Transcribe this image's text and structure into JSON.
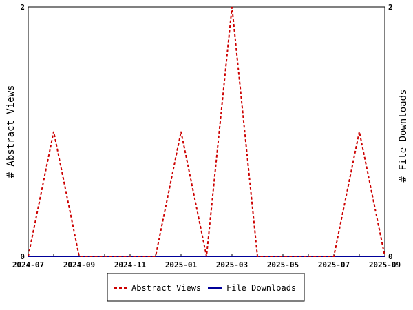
{
  "chart_data": {
    "type": "line",
    "x_labels": [
      "2024-07",
      "2024-09",
      "2024-11",
      "2025-01",
      "2025-03",
      "2025-05",
      "2025-07",
      "2025-09"
    ],
    "x": [
      "2024-07",
      "2024-08",
      "2024-09",
      "2024-10",
      "2024-11",
      "2024-12",
      "2025-01",
      "2025-02",
      "2025-03",
      "2025-04",
      "2025-05",
      "2025-06",
      "2025-07",
      "2025-08",
      "2025-09"
    ],
    "series": [
      {
        "name": "Abstract Views",
        "axis": "left",
        "color": "#cc0000",
        "style": "dashed",
        "values": [
          0,
          1,
          0,
          0,
          0,
          0,
          1,
          0,
          2,
          0,
          0,
          0,
          0,
          1,
          0
        ]
      },
      {
        "name": "File Downloads",
        "axis": "right",
        "color": "#000099",
        "style": "solid",
        "values": [
          0,
          0,
          0,
          0,
          0,
          0,
          0,
          0,
          0,
          0,
          0,
          0,
          0,
          0,
          0
        ]
      }
    ],
    "ylabel_left": "# Abstract Views",
    "ylabel_right": "# File Downloads",
    "ylim_left": [
      0,
      2
    ],
    "ylim_right": [
      0,
      2
    ],
    "y_ticks_left": [
      "0",
      "2"
    ],
    "y_ticks_right": [
      "0",
      "2"
    ],
    "legend_position": "bottom"
  }
}
